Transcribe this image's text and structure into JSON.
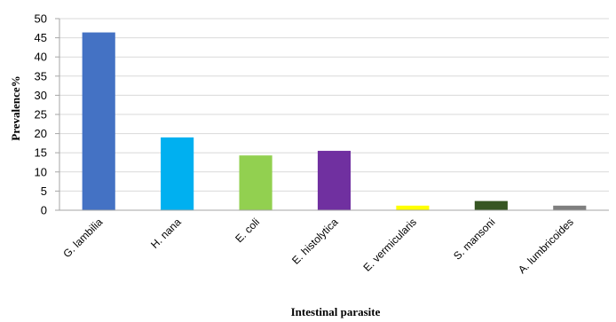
{
  "chart_data": {
    "type": "bar",
    "title": "",
    "xlabel": "Intestinal parasite",
    "ylabel": "Prevalence%",
    "ylim": [
      0,
      50
    ],
    "yticks": [
      0,
      5,
      10,
      15,
      20,
      25,
      30,
      35,
      40,
      45,
      50
    ],
    "grid": true,
    "legend": "none",
    "categories": [
      "G. lambilia",
      "H. nana",
      "E. coli",
      "E. histolytica",
      "E. vermicularis",
      "S. mansoni",
      "A. lumbricoides"
    ],
    "values": [
      46.4,
      19.0,
      14.3,
      15.5,
      1.2,
      2.4,
      1.2
    ],
    "colors": [
      "#4472c4",
      "#00b0f0",
      "#92d050",
      "#7030a0",
      "#ffff00",
      "#375623",
      "#7f7f7f"
    ]
  }
}
